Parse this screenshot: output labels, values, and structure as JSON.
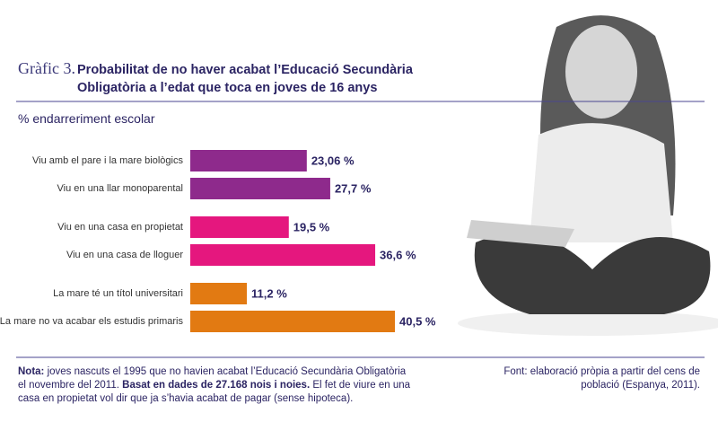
{
  "chart_data": {
    "type": "bar",
    "orientation": "horizontal",
    "prefix": "Gràfic 3.",
    "title": "Probabilitat de no haver acabat l’Educació Secundària Obligatòria a l’edat que toca en joves de 16 anys",
    "subtitle": "% endarreriment escolar",
    "categories": [
      "Viu amb el pare i la mare biològics",
      "Viu en una llar monoparental",
      "Viu en una casa en propietat",
      "Viu en una casa de lloguer",
      "La mare té un títol universitari",
      "La mare no va acabar els estudis primaris"
    ],
    "values": [
      23.06,
      27.7,
      19.5,
      36.6,
      11.2,
      40.5
    ],
    "value_labels": [
      "23,06 %",
      "27,7 %",
      "19,5 %",
      "36,6 %",
      "11,2 %",
      "40,5 %"
    ],
    "colors": [
      "#8e2a8c",
      "#8e2a8c",
      "#e5177e",
      "#e5177e",
      "#e27a12",
      "#e27a12"
    ],
    "note": {
      "label": "Nota:",
      "text": " joves nascuts el 1995 que no havien acabat l’Educació Secundària Obligatòria el novembre del 2011. ",
      "highlight": "Basat en dades de 27.168 nois i noies.",
      "text2": " El fet de viure en una casa en propietat vol dir que ja s’havia acabat de pagar (sense hipoteca)."
    },
    "source": "Font: elaboració pròpia a partir del cens de població (Espanya, 2011)."
  }
}
